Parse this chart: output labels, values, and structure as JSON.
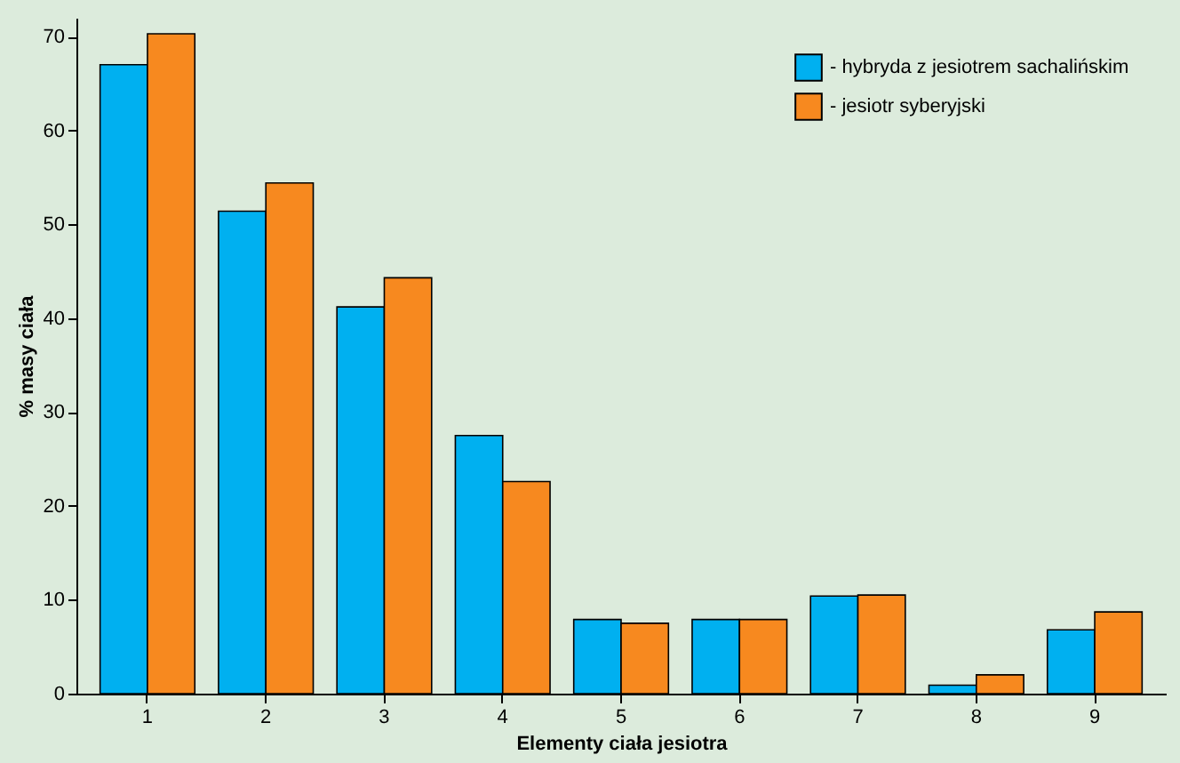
{
  "chart_data": {
    "type": "bar",
    "xlabel": "Elementy ciała jesiotra",
    "ylabel": "% masy ciała",
    "categories": [
      "1",
      "2",
      "3",
      "4",
      "5",
      "6",
      "7",
      "8",
      "9"
    ],
    "series": [
      {
        "name": "- hybryda z jesiotrem sachalińskim",
        "color": "#00b0f0",
        "values": [
          67,
          51.4,
          41.2,
          27.5,
          7.9,
          7.9,
          10.4,
          0.9,
          6.8
        ]
      },
      {
        "name": "- jesiotr syberyjski",
        "color": "#f7891f",
        "values": [
          70.3,
          54.4,
          44.3,
          22.6,
          7.5,
          7.9,
          10.5,
          2,
          8.7
        ]
      }
    ],
    "ylim": [
      0,
      72
    ],
    "yticks": [
      0,
      10,
      20,
      30,
      40,
      50,
      60,
      70
    ],
    "grid": false,
    "legend": "top right"
  }
}
